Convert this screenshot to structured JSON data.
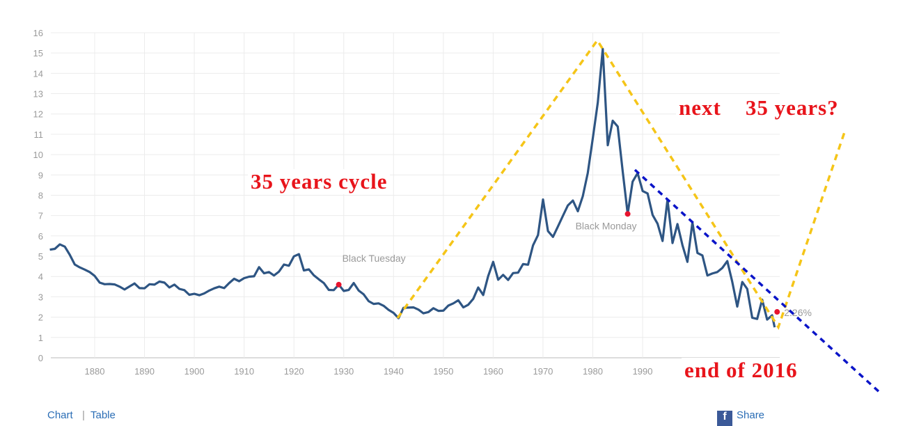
{
  "chart_data": {
    "type": "line",
    "title": "",
    "xlabel": "",
    "ylabel": "",
    "xlim": [
      1871,
      2017
    ],
    "ylim": [
      0,
      16
    ],
    "x_ticks": [
      1880,
      1890,
      1900,
      1910,
      1920,
      1930,
      1940,
      1950,
      1960,
      1970,
      1980,
      1990
    ],
    "y_ticks": [
      0,
      1,
      2,
      3,
      4,
      5,
      6,
      7,
      8,
      9,
      10,
      11,
      12,
      13,
      14,
      15,
      16
    ],
    "grid": true,
    "line_color": "#2e5583",
    "series": [
      {
        "x": [
          1871,
          1872,
          1873,
          1874,
          1875,
          1876,
          1877,
          1878,
          1879,
          1880,
          1881,
          1882,
          1883,
          1884,
          1885,
          1886,
          1887,
          1888,
          1889,
          1890,
          1891,
          1892,
          1893,
          1894,
          1895,
          1896,
          1897,
          1898,
          1899,
          1900,
          1901,
          1902,
          1903,
          1904,
          1905,
          1906,
          1907,
          1908,
          1909,
          1910,
          1911,
          1912,
          1913,
          1914,
          1915,
          1916,
          1917,
          1918,
          1919,
          1920,
          1921,
          1922,
          1923,
          1924,
          1925,
          1926,
          1927,
          1928,
          1929,
          1930,
          1931,
          1932,
          1933,
          1934,
          1935,
          1936,
          1937,
          1938,
          1939,
          1940,
          1941,
          1942,
          1943,
          1944,
          1945,
          1946,
          1947,
          1948,
          1949,
          1950,
          1951,
          1952,
          1953,
          1954,
          1955,
          1956,
          1957,
          1958,
          1959,
          1960,
          1961,
          1962,
          1963,
          1964,
          1965,
          1966,
          1967,
          1968,
          1969,
          1970,
          1971,
          1972,
          1973,
          1974,
          1975,
          1976,
          1977,
          1978,
          1979,
          1980,
          1981,
          1982,
          1983,
          1984,
          1985,
          1986,
          1987,
          1988,
          1989,
          1990,
          1991,
          1992,
          1993,
          1994,
          1995,
          1996,
          1997,
          1998,
          1999,
          2000,
          2001,
          2002,
          2003,
          2004,
          2005,
          2006,
          2007,
          2008,
          2009,
          2010,
          2011,
          2012,
          2013,
          2014,
          2015,
          2016,
          2016.5
        ],
        "y": [
          5.32,
          5.36,
          5.58,
          5.47,
          5.07,
          4.59,
          4.45,
          4.34,
          4.22,
          4.03,
          3.7,
          3.62,
          3.63,
          3.61,
          3.5,
          3.36,
          3.51,
          3.66,
          3.43,
          3.42,
          3.62,
          3.6,
          3.75,
          3.7,
          3.46,
          3.6,
          3.39,
          3.33,
          3.1,
          3.15,
          3.08,
          3.17,
          3.31,
          3.42,
          3.5,
          3.43,
          3.68,
          3.89,
          3.77,
          3.92,
          3.99,
          4.01,
          4.46,
          4.16,
          4.22,
          4.05,
          4.24,
          4.59,
          4.53,
          4.99,
          5.1,
          4.3,
          4.35,
          4.06,
          3.86,
          3.68,
          3.34,
          3.33,
          3.6,
          3.29,
          3.34,
          3.68,
          3.31,
          3.12,
          2.79,
          2.65,
          2.68,
          2.56,
          2.36,
          2.21,
          1.95,
          2.46,
          2.47,
          2.48,
          2.37,
          2.19,
          2.25,
          2.44,
          2.31,
          2.32,
          2.57,
          2.68,
          2.83,
          2.48,
          2.61,
          2.9,
          3.46,
          3.09,
          4.02,
          4.72,
          3.84,
          4.08,
          3.83,
          4.17,
          4.19,
          4.61,
          4.58,
          5.53,
          6.04,
          7.79,
          6.24,
          5.95,
          6.46,
          6.99,
          7.5,
          7.74,
          7.21,
          7.96,
          9.1,
          10.8,
          12.57,
          15.2,
          10.46,
          11.67,
          11.38,
          9.19,
          7.08,
          8.67,
          9.09,
          8.21,
          8.09,
          7.03,
          6.6,
          5.75,
          7.78,
          5.65,
          6.58,
          5.54,
          4.72,
          6.66,
          5.16,
          5.04,
          4.05,
          4.15,
          4.22,
          4.42,
          4.76,
          3.74,
          2.52,
          3.73,
          3.39,
          1.97,
          1.91,
          2.86,
          1.88,
          2.09,
          1.5
        ]
      }
    ],
    "events": [
      {
        "label": "Black Tuesday",
        "x": 1929,
        "y": 3.6,
        "color": "#e8142e"
      },
      {
        "label": "Black Monday",
        "x": 1987,
        "y": 7.08,
        "color": "#e8142e"
      },
      {
        "label": "2.26%",
        "x": 2017,
        "y": 2.26,
        "color": "#e8142e"
      }
    ],
    "annotations": {
      "cycle": "35 years cycle",
      "next": "next    35 years?",
      "end": "end of 2016"
    },
    "annotation_colors": {
      "text": "#e8141b",
      "cycle_lines": "#f5c518",
      "trend_line": "#0a14c8"
    }
  },
  "footer": {
    "chart_link": "Chart",
    "separator": "|",
    "table_link": "Table",
    "share_label": "Share",
    "share_icon": "facebook-icon"
  }
}
